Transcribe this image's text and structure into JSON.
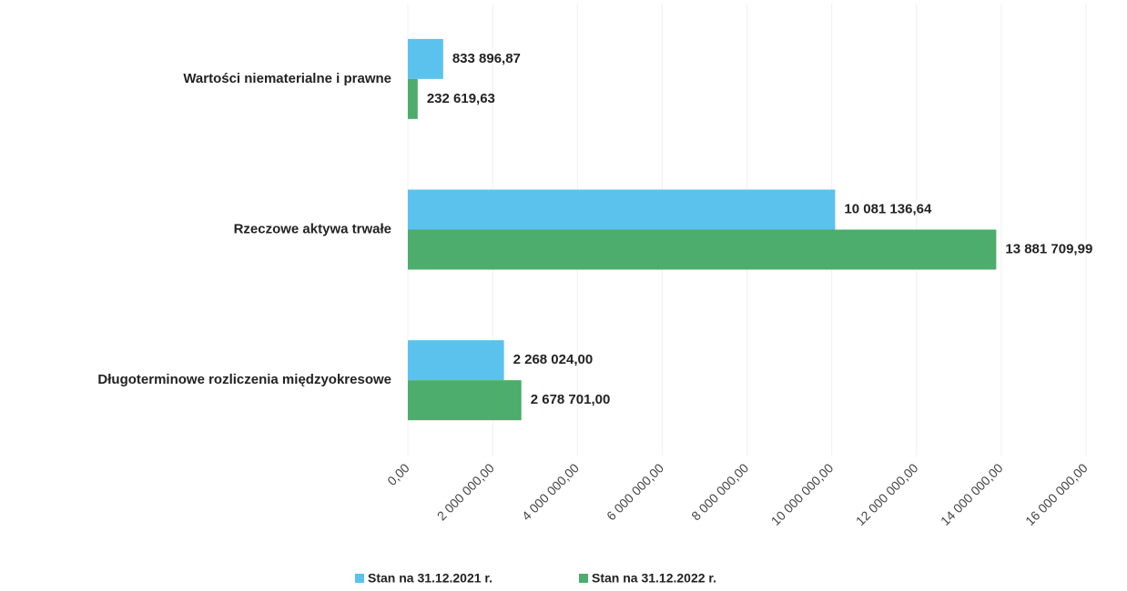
{
  "chart_data": {
    "type": "barh",
    "categories": [
      "Wartości niematerialne i prawne",
      "Rzeczowe aktywa trwałe",
      "Długoterminowe rozliczenia międzyokresowe"
    ],
    "series": [
      {
        "name": "Stan na 31.12.2021 r.",
        "color": "#5bc2ee",
        "values": [
          833896.87,
          10081136.64,
          2268024.0
        ],
        "value_labels": [
          "833 896,87",
          "10 081 136,64",
          "2 268 024,00"
        ]
      },
      {
        "name": "Stan na 31.12.2022 r.",
        "color": "#4cad6c",
        "values": [
          232619.63,
          13881709.99,
          2678701.0
        ],
        "value_labels": [
          "232 619,63",
          "13 881 709,99",
          "2 678 701,00"
        ]
      }
    ],
    "xlim": [
      0,
      16000000
    ],
    "xticks": [
      {
        "value": 0,
        "label": "0,00"
      },
      {
        "value": 2000000,
        "label": "2 000 000,00"
      },
      {
        "value": 4000000,
        "label": "4 000 000,00"
      },
      {
        "value": 6000000,
        "label": "6 000 000,00"
      },
      {
        "value": 8000000,
        "label": "8 000 000,00"
      },
      {
        "value": 10000000,
        "label": "10 000 000,00"
      },
      {
        "value": 12000000,
        "label": "12 000 000,00"
      },
      {
        "value": 14000000,
        "label": "14 000 000,00"
      },
      {
        "value": 16000000,
        "label": "16 000 000,00"
      }
    ],
    "grid": true,
    "legend": "bottom"
  }
}
